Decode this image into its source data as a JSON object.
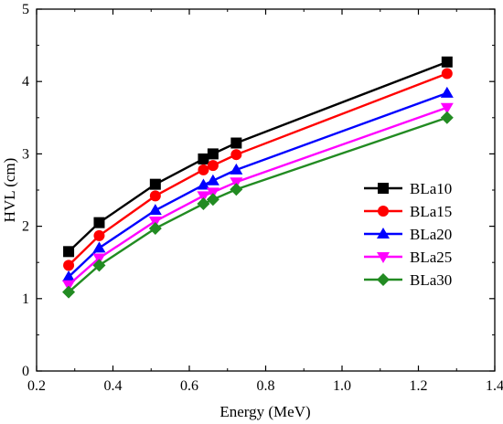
{
  "chart_data": {
    "type": "line",
    "xlabel": "Energy (MeV)",
    "ylabel": "HVL (cm)",
    "xlim": [
      0.2,
      1.4
    ],
    "ylim": [
      0,
      5
    ],
    "xticks": [
      0.2,
      0.4,
      0.6,
      0.8,
      1.0,
      1.2,
      1.4
    ],
    "xtick_labels": [
      "0.2",
      "0.4",
      "0.6",
      "0.8",
      "1.0",
      "1.2",
      "1.4"
    ],
    "yticks": [
      0,
      1,
      2,
      3,
      4,
      5
    ],
    "ytick_labels": [
      "0",
      "1",
      "2",
      "3",
      "4",
      "5"
    ],
    "grid": false,
    "legend_position": "right",
    "x": [
      0.284,
      0.364,
      0.511,
      0.637,
      0.662,
      0.723,
      1.275
    ],
    "series": [
      {
        "name": "BLa10",
        "color": "#000000",
        "marker": "square",
        "values": [
          1.65,
          2.05,
          2.58,
          2.93,
          3.0,
          3.15,
          4.27
        ]
      },
      {
        "name": "BLa15",
        "color": "#ff0000",
        "marker": "circle",
        "values": [
          1.46,
          1.87,
          2.42,
          2.78,
          2.84,
          2.99,
          4.11
        ]
      },
      {
        "name": "BLa20",
        "color": "#0000ff",
        "marker": "triangle-up",
        "values": [
          1.3,
          1.7,
          2.22,
          2.57,
          2.63,
          2.78,
          3.84
        ]
      },
      {
        "name": "BLa25",
        "color": "#ff00ff",
        "marker": "triangle-down",
        "values": [
          1.19,
          1.56,
          2.07,
          2.42,
          2.47,
          2.61,
          3.64
        ]
      },
      {
        "name": "BLa30",
        "color": "#228b22",
        "marker": "diamond",
        "values": [
          1.09,
          1.46,
          1.97,
          2.31,
          2.37,
          2.51,
          3.5
        ]
      }
    ]
  }
}
